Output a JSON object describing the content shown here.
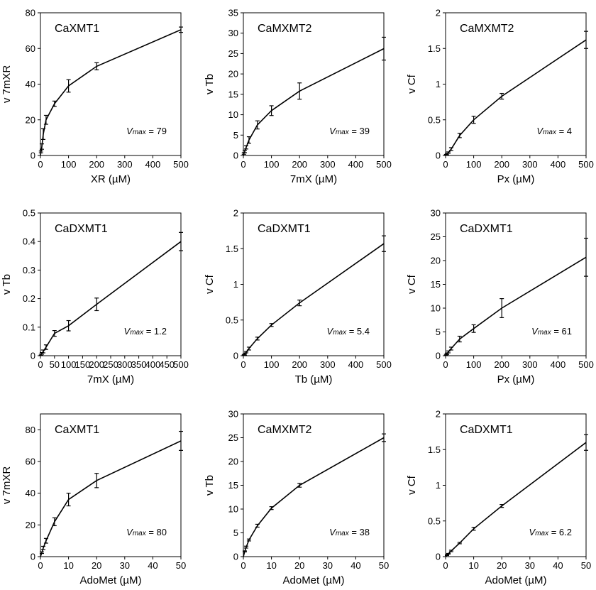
{
  "figure": {
    "panel_count": 9
  },
  "chart_data": [
    {
      "type": "line",
      "title": "CaXMT1",
      "xlabel": "XR (µM)",
      "ylabel": "v 7mXR",
      "xlim": [
        0,
        500
      ],
      "ylim": [
        0,
        80
      ],
      "xticks": [
        "0",
        "100",
        "200",
        "300",
        "400",
        "500"
      ],
      "yticks": [
        "0",
        "20",
        "40",
        "60",
        "80"
      ],
      "vmax": {
        "label": "V",
        "sub": "max",
        "text": " = 79"
      },
      "series": [
        {
          "x": [
            2,
            5,
            10,
            20,
            50,
            100,
            200,
            500
          ],
          "y": [
            2,
            5,
            12,
            20,
            29,
            39,
            50,
            70.5
          ],
          "err": [
            0.5,
            1.5,
            3,
            2.5,
            1.5,
            3.5,
            2,
            1.5
          ]
        }
      ]
    },
    {
      "type": "line",
      "title": "CaMXMT2",
      "xlabel": "7mX (µM)",
      "ylabel": "v Tb",
      "xlim": [
        0,
        500
      ],
      "ylim": [
        0,
        35
      ],
      "xticks": [
        "0",
        "100",
        "200",
        "300",
        "400",
        "500"
      ],
      "yticks": [
        "0",
        "5",
        "10",
        "15",
        "20",
        "25",
        "30",
        "35"
      ],
      "vmax": {
        "label": "V",
        "sub": "max",
        "text": " = 39"
      },
      "series": [
        {
          "x": [
            2,
            5,
            10,
            20,
            50,
            100,
            200,
            500
          ],
          "y": [
            0.5,
            1,
            2,
            3.8,
            7.5,
            11,
            15.8,
            26.2
          ],
          "err": [
            0.2,
            0.3,
            0.4,
            0.8,
            1,
            1.2,
            2,
            2.8
          ]
        }
      ]
    },
    {
      "type": "line",
      "title": "CaMXMT2",
      "xlabel": "Px (µM)",
      "ylabel": "v Cf",
      "xlim": [
        0,
        500
      ],
      "ylim": [
        0,
        2
      ],
      "xticks": [
        "0",
        "100",
        "200",
        "300",
        "400",
        "500"
      ],
      "yticks": [
        "0",
        "0.5",
        "1",
        "1.5",
        "2"
      ],
      "vmax": {
        "label": "V",
        "sub": "max",
        "text": " = 4"
      },
      "series": [
        {
          "x": [
            2,
            5,
            10,
            20,
            50,
            100,
            200,
            500
          ],
          "y": [
            0.01,
            0.02,
            0.04,
            0.09,
            0.28,
            0.5,
            0.83,
            1.62
          ],
          "err": [
            0.005,
            0.01,
            0.01,
            0.02,
            0.03,
            0.05,
            0.04,
            0.12
          ]
        }
      ]
    },
    {
      "type": "line",
      "title": "CaDXMT1",
      "xlabel": "7mX (µM)",
      "ylabel": "v Tb",
      "xlim": [
        0,
        500
      ],
      "ylim": [
        0,
        0.5
      ],
      "xticks": [
        "0",
        "50",
        "100",
        "150",
        "200",
        "250",
        "300",
        "350",
        "400",
        "450",
        "500"
      ],
      "yticks": [
        "0",
        "0.1",
        "0.2",
        "0.3",
        "0.4",
        "0.5"
      ],
      "vmax": {
        "label": "V",
        "sub": "max",
        "text": " = 1.2"
      },
      "series": [
        {
          "x": [
            2,
            5,
            10,
            20,
            50,
            100,
            200,
            500
          ],
          "y": [
            0.003,
            0.008,
            0.015,
            0.03,
            0.078,
            0.105,
            0.18,
            0.4
          ],
          "err": [
            0.002,
            0.003,
            0.005,
            0.008,
            0.01,
            0.018,
            0.022,
            0.032
          ]
        }
      ]
    },
    {
      "type": "line",
      "title": "CaDXMT1",
      "xlabel": "Tb (µM)",
      "ylabel": "v Cf",
      "xlim": [
        0,
        500
      ],
      "ylim": [
        0,
        2
      ],
      "xticks": [
        "0",
        "100",
        "200",
        "300",
        "400",
        "500"
      ],
      "yticks": [
        "0",
        "0.5",
        "1",
        "1.5",
        "2"
      ],
      "vmax": {
        "label": "V",
        "sub": "max",
        "text": " = 5.4"
      },
      "series": [
        {
          "x": [
            2,
            5,
            10,
            20,
            50,
            100,
            200,
            500
          ],
          "y": [
            0.01,
            0.02,
            0.05,
            0.1,
            0.24,
            0.43,
            0.74,
            1.57
          ],
          "err": [
            0.005,
            0.01,
            0.01,
            0.02,
            0.02,
            0.02,
            0.04,
            0.11
          ]
        }
      ]
    },
    {
      "type": "line",
      "title": "CaDXMT1",
      "xlabel": "Px (µM)",
      "ylabel": "v Cf",
      "xlim": [
        0,
        500
      ],
      "ylim": [
        0,
        30
      ],
      "xticks": [
        "0",
        "100",
        "200",
        "300",
        "400",
        "500"
      ],
      "yticks": [
        "0",
        "5",
        "10",
        "15",
        "20",
        "25",
        "30"
      ],
      "vmax": {
        "label": "V",
        "sub": "max",
        "text": " = 61"
      },
      "series": [
        {
          "x": [
            2,
            5,
            10,
            20,
            50,
            100,
            200,
            500
          ],
          "y": [
            0.2,
            0.4,
            0.8,
            1.5,
            3.5,
            5.7,
            10,
            20.7
          ],
          "err": [
            0.1,
            0.15,
            0.2,
            0.3,
            0.6,
            0.8,
            2,
            4
          ]
        }
      ]
    },
    {
      "type": "line",
      "title": "CaXMT1",
      "xlabel": "AdoMet (µM)",
      "ylabel": "v 7mXR",
      "xlim": [
        0,
        50
      ],
      "ylim": [
        0,
        90
      ],
      "xticks": [
        "0",
        "10",
        "20",
        "30",
        "40",
        "50"
      ],
      "yticks": [
        "0",
        "20",
        "40",
        "60",
        "80"
      ],
      "vmax": {
        "label": "V",
        "sub": "max",
        "text": " = 80"
      },
      "series": [
        {
          "x": [
            0.5,
            1,
            2,
            5,
            10,
            20,
            50
          ],
          "y": [
            2.5,
            5.5,
            10,
            22,
            36,
            48,
            73
          ],
          "err": [
            0.5,
            1,
            1.5,
            2.5,
            4,
            4.5,
            6
          ]
        }
      ]
    },
    {
      "type": "line",
      "title": "CaMXMT2",
      "xlabel": "AdoMet (µM)",
      "ylabel": "v Tb",
      "xlim": [
        0,
        50
      ],
      "ylim": [
        0,
        30
      ],
      "xticks": [
        "0",
        "10",
        "20",
        "30",
        "40",
        "50"
      ],
      "yticks": [
        "0",
        "5",
        "10",
        "15",
        "20",
        "25",
        "30"
      ],
      "vmax": {
        "label": "V",
        "sub": "max",
        "text": " = 38"
      },
      "series": [
        {
          "x": [
            0.5,
            1,
            2,
            5,
            10,
            20,
            50
          ],
          "y": [
            1.1,
            2,
            3.5,
            6.5,
            10.2,
            15,
            25
          ],
          "err": [
            0.1,
            0.2,
            0.2,
            0.3,
            0.3,
            0.4,
            0.8
          ]
        }
      ]
    },
    {
      "type": "line",
      "title": "CaDXMT1",
      "xlabel": "AdoMet (µM)",
      "ylabel": "v Cf",
      "xlim": [
        0,
        50
      ],
      "ylim": [
        0,
        2
      ],
      "xticks": [
        "0",
        "10",
        "20",
        "30",
        "40",
        "50"
      ],
      "yticks": [
        "0",
        "0.5",
        "1",
        "1.5",
        "2"
      ],
      "vmax": {
        "label": "V",
        "sub": "max",
        "text": " = 6.2"
      },
      "series": [
        {
          "x": [
            0.5,
            1,
            2,
            5,
            10,
            20,
            50
          ],
          "y": [
            0.02,
            0.04,
            0.08,
            0.19,
            0.39,
            0.71,
            1.6
          ],
          "err": [
            0.005,
            0.005,
            0.01,
            0.01,
            0.02,
            0.02,
            0.11
          ]
        }
      ]
    }
  ]
}
